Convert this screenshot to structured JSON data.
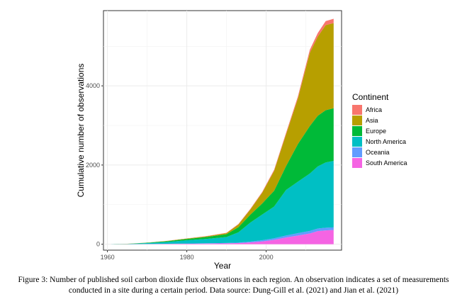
{
  "caption": {
    "line1": "Figure 3: Number of published soil carbon dioxide flux observations in each region. An observation indicates a set of measurements",
    "line2": "conducted in a site during a certain period. Data source:  Dung-Gill et al. (2021) and Jian et al. (2021)"
  },
  "chart_data": {
    "type": "area",
    "stacked": true,
    "xlabel": "Year",
    "ylabel": "Cumulative number of observations",
    "xlim": [
      1959,
      2019
    ],
    "ylim": [
      -150,
      5900
    ],
    "xticks": [
      1960,
      1980,
      2000
    ],
    "yticks": [
      0,
      2000,
      4000
    ],
    "grid": true,
    "legend_title": "Continent",
    "legend_position": "right",
    "x": [
      1961,
      1965,
      1970,
      1975,
      1980,
      1985,
      1990,
      1993,
      1996,
      1999,
      2002,
      2005,
      2008,
      2011,
      2013,
      2015,
      2017
    ],
    "series": [
      {
        "name": "South America",
        "color": "#F564E3",
        "values": [
          0,
          2,
          5,
          8,
          12,
          16,
          22,
          28,
          45,
          70,
          110,
          170,
          220,
          270,
          330,
          350,
          360
        ]
      },
      {
        "name": "Oceania",
        "color": "#619CFF",
        "values": [
          0,
          0,
          2,
          4,
          6,
          8,
          10,
          12,
          20,
          30,
          40,
          50,
          60,
          65,
          65,
          65,
          65
        ]
      },
      {
        "name": "North America",
        "color": "#00BFC4",
        "values": [
          1,
          5,
          22,
          45,
          80,
          110,
          150,
          260,
          480,
          650,
          800,
          1150,
          1300,
          1450,
          1570,
          1650,
          1680
        ]
      },
      {
        "name": "Europe",
        "color": "#00BA38",
        "values": [
          0,
          2,
          8,
          20,
          35,
          50,
          70,
          130,
          200,
          280,
          400,
          600,
          950,
          1200,
          1280,
          1320,
          1330
        ]
      },
      {
        "name": "Asia",
        "color": "#B79F00",
        "values": [
          0,
          1,
          3,
          6,
          10,
          16,
          28,
          70,
          130,
          270,
          500,
          800,
          1150,
          1850,
          2000,
          2150,
          2150
        ]
      },
      {
        "name": "Africa",
        "color": "#F8766D",
        "values": [
          0,
          0,
          1,
          2,
          3,
          5,
          8,
          10,
          15,
          20,
          30,
          40,
          55,
          75,
          90,
          100,
          110
        ]
      }
    ],
    "legend_order": [
      "Africa",
      "Asia",
      "Europe",
      "North America",
      "Oceania",
      "South America"
    ]
  }
}
